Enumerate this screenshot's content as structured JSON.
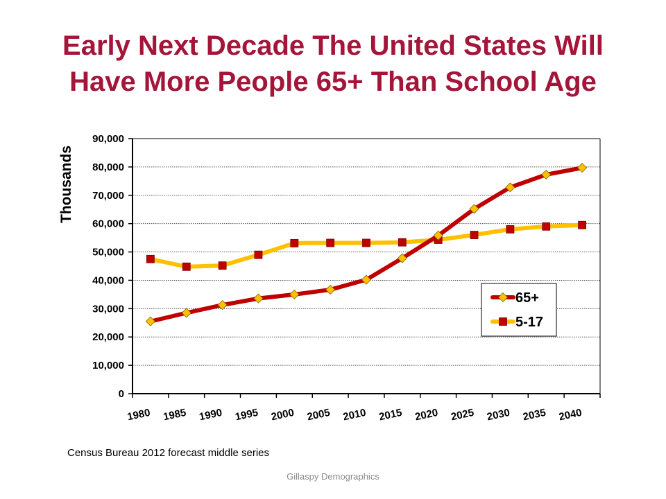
{
  "slide": {
    "title_line1": "Early Next Decade The United States Will",
    "title_line2": "Have More People 65+ Than School Age",
    "source_note": "Census Bureau 2012 forecast middle series",
    "footer": "Gillaspy Demographics"
  },
  "chart_data": {
    "type": "line",
    "ylabel": "Thousands",
    "ylim": [
      0,
      90000
    ],
    "yticks": [
      "0",
      "10,000",
      "20,000",
      "30,000",
      "40,000",
      "50,000",
      "60,000",
      "70,000",
      "80,000",
      "90,000"
    ],
    "categories": [
      "1980",
      "1985",
      "1990",
      "1995",
      "2000",
      "2005",
      "2010",
      "2015",
      "2020",
      "2025",
      "2030",
      "2035",
      "2040"
    ],
    "grid": true,
    "legend_position": "right",
    "series": [
      {
        "name": "65+",
        "color": "#c00000",
        "marker": "diamond",
        "marker_color": "#ffc000",
        "values": [
          25500,
          28500,
          31300,
          33600,
          35000,
          36700,
          40200,
          47800,
          55800,
          65200,
          72800,
          77300,
          79700
        ]
      },
      {
        "name": "5-17",
        "color": "#ffc000",
        "marker": "square",
        "marker_color": "#c00000",
        "values": [
          47500,
          44800,
          45200,
          49000,
          53100,
          53200,
          53200,
          53400,
          54300,
          56000,
          58000,
          59000,
          59500
        ]
      }
    ]
  }
}
